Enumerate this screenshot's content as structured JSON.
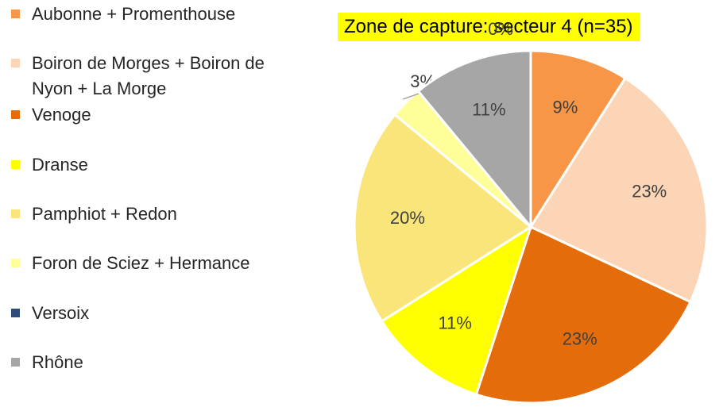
{
  "chart_data": {
    "type": "pie",
    "title": "Zone de capture: secteur 4 (n=35)",
    "categories": [
      "Aubonne + Promenthouse",
      "Boiron de Morges + Boiron de Nyon + La Morge",
      "Venoge",
      "Dranse",
      "Pamphiot + Redon",
      "Foron de Sciez + Hermance",
      "Versoix",
      "Rhône"
    ],
    "values": [
      9,
      23,
      23,
      11,
      20,
      3,
      0,
      11
    ],
    "value_labels": [
      "9%",
      "23%",
      "23%",
      "11%",
      "20%",
      "3%",
      "0%",
      "11%"
    ],
    "colors": [
      "#f79646",
      "#fbd5b5",
      "#e46c0a",
      "#ffff00",
      "#fae57a",
      "#ffff99",
      "#2e4b7a",
      "#a6a6a6"
    ],
    "legend": "left"
  }
}
